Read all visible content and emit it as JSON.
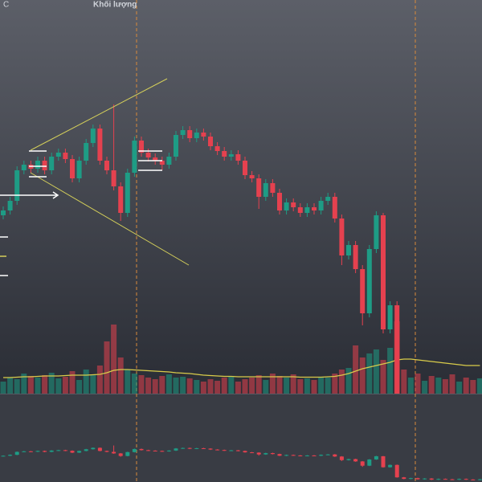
{
  "chart_data": {
    "type": "candlestick",
    "title": "C",
    "volume_label": "Khối lượng",
    "up_color": "#1e9c85",
    "down_color": "#e5414f",
    "ma_color": "#d9cc4a",
    "ylim": [
      0,
      600
    ],
    "volume_ylim": [
      0,
      200
    ],
    "candles": [
      [
        332,
        343,
        327,
        338
      ],
      [
        338,
        355,
        333,
        350
      ],
      [
        350,
        393,
        345,
        388
      ],
      [
        388,
        400,
        383,
        395
      ],
      [
        395,
        400,
        385,
        390
      ],
      [
        390,
        405,
        385,
        400
      ],
      [
        400,
        405,
        383,
        388
      ],
      [
        388,
        410,
        383,
        405
      ],
      [
        405,
        415,
        400,
        410
      ],
      [
        410,
        415,
        397,
        402
      ],
      [
        402,
        407,
        373,
        378
      ],
      [
        378,
        405,
        373,
        400
      ],
      [
        400,
        427,
        395,
        422
      ],
      [
        422,
        445,
        417,
        440
      ],
      [
        440,
        445,
        395,
        400
      ],
      [
        400,
        405,
        383,
        388
      ],
      [
        388,
        470,
        363,
        368
      ],
      [
        368,
        373,
        325,
        335
      ],
      [
        335,
        390,
        330,
        385
      ],
      [
        385,
        430,
        380,
        425
      ],
      [
        425,
        430,
        405,
        410
      ],
      [
        410,
        415,
        399,
        404
      ],
      [
        404,
        409,
        395,
        400
      ],
      [
        400,
        405,
        388,
        395
      ],
      [
        395,
        410,
        390,
        405
      ],
      [
        405,
        437,
        400,
        432
      ],
      [
        432,
        443,
        427,
        438
      ],
      [
        438,
        443,
        423,
        428
      ],
      [
        428,
        440,
        423,
        435
      ],
      [
        435,
        440,
        425,
        430
      ],
      [
        430,
        435,
        413,
        418
      ],
      [
        418,
        423,
        407,
        412
      ],
      [
        412,
        417,
        400,
        405
      ],
      [
        405,
        413,
        400,
        408
      ],
      [
        408,
        413,
        395,
        400
      ],
      [
        400,
        405,
        377,
        382
      ],
      [
        382,
        387,
        373,
        378
      ],
      [
        378,
        383,
        340,
        355
      ],
      [
        355,
        377,
        350,
        372
      ],
      [
        372,
        377,
        355,
        360
      ],
      [
        360,
        365,
        333,
        338
      ],
      [
        338,
        353,
        333,
        348
      ],
      [
        348,
        353,
        337,
        342
      ],
      [
        342,
        347,
        330,
        335
      ],
      [
        335,
        347,
        330,
        342
      ],
      [
        342,
        347,
        333,
        338
      ],
      [
        338,
        355,
        333,
        350
      ],
      [
        350,
        360,
        345,
        355
      ],
      [
        355,
        360,
        323,
        328
      ],
      [
        328,
        333,
        270,
        282
      ],
      [
        282,
        300,
        277,
        295
      ],
      [
        295,
        300,
        260,
        265
      ],
      [
        265,
        270,
        195,
        210
      ],
      [
        210,
        295,
        205,
        290
      ],
      [
        290,
        337,
        285,
        332
      ],
      [
        332,
        335,
        185,
        190
      ],
      [
        190,
        225,
        185,
        220
      ],
      [
        220,
        225,
        55,
        60
      ],
      [
        60,
        65,
        35,
        40
      ],
      [
        40,
        55,
        35,
        50
      ],
      [
        50,
        55,
        30,
        35
      ],
      [
        35,
        50,
        30,
        45
      ],
      [
        45,
        50,
        25,
        30
      ],
      [
        30,
        45,
        25,
        40
      ],
      [
        40,
        45,
        30,
        35
      ],
      [
        35,
        40,
        25,
        30
      ],
      [
        30,
        45,
        25,
        40
      ],
      [
        40,
        45,
        27,
        32
      ],
      [
        32,
        37,
        23,
        28
      ],
      [
        28,
        40,
        23,
        35
      ]
    ],
    "volume": [
      30,
      40,
      36,
      50,
      44,
      40,
      46,
      52,
      38,
      42,
      56,
      34,
      60,
      48,
      70,
      130,
      172,
      90,
      60,
      50,
      46,
      40,
      36,
      44,
      48,
      40,
      42,
      38,
      34,
      30,
      36,
      32,
      40,
      44,
      30,
      36,
      40,
      46,
      34,
      50,
      44,
      40,
      48,
      36,
      38,
      34,
      42,
      40,
      50,
      60,
      64,
      120,
      90,
      100,
      110,
      84,
      114,
      180,
      60,
      40,
      50,
      32,
      44,
      40,
      36,
      48,
      30,
      40,
      34,
      38
    ],
    "volume_ma": [
      40,
      40,
      41,
      42,
      42,
      43,
      44,
      44,
      44,
      45,
      46,
      46,
      46,
      47,
      48,
      52,
      58,
      60,
      60,
      59,
      58,
      57,
      56,
      55,
      54,
      52,
      51,
      50,
      48,
      46,
      45,
      44,
      43,
      43,
      42,
      42,
      42,
      42,
      42,
      42,
      42,
      42,
      42,
      41,
      41,
      41,
      41,
      42,
      43,
      46,
      50,
      56,
      62,
      66,
      70,
      74,
      78,
      84,
      86,
      86,
      84,
      82,
      80,
      78,
      76,
      74,
      72,
      70,
      70,
      70
    ]
  }
}
